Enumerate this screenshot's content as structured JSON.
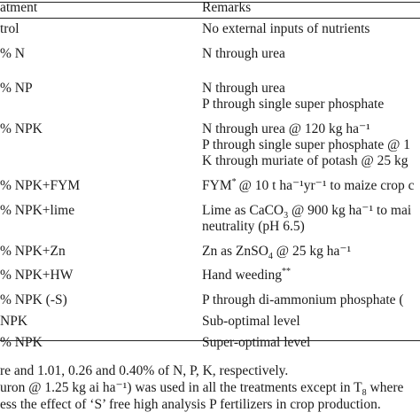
{
  "header": {
    "treatment": "atment",
    "remarks": "Remarks"
  },
  "rows": [
    {
      "treatment": "trol",
      "remarks": [
        "No external inputs of nutrients"
      ]
    },
    {
      "treatment": "% N",
      "remarks": [
        "N through urea"
      ]
    },
    {
      "treatment": "% NP",
      "remarks": [
        "N through urea",
        "P through single super phosphate"
      ]
    },
    {
      "treatment": "% NPK",
      "remarks": [
        "N through urea @ 120 kg ha⁻¹",
        "P through single super phosphate @ 1",
        "K through muriate of potash @ 25 kg"
      ]
    },
    {
      "treatment": "% NPK+FYM",
      "remarks_pre": "FYM",
      "remarks_sup": "*",
      "remarks_post": "@ 10 t ha⁻¹yr⁻¹ to maize crop c"
    },
    {
      "treatment": "% NPK+lime",
      "remarks_pre": "Lime as CaCO",
      "remarks_sub": "3",
      "remarks_post": " @ 900 kg ha⁻¹ to mai",
      "remarks_line2": "neutrality (pH 6.5)"
    },
    {
      "treatment": "% NPK+Zn",
      "remarks_pre": "Zn as ZnSO",
      "remarks_sub": "4",
      "remarks_post": " @ 25 kg ha⁻¹"
    },
    {
      "treatment": "% NPK+HW",
      "remarks_pre": "Hand weeding",
      "remarks_sup": "**"
    },
    {
      "treatment": "% NPK (-S)",
      "remarks": [
        "P through di-ammonium phosphate ("
      ]
    },
    {
      "treatment": "NPK",
      "remarks": [
        "Sub-optimal level"
      ]
    },
    {
      "treatment": "% NPK",
      "remarks": [
        "Super-optimal level"
      ]
    }
  ],
  "footnotes": {
    "line1": "re and 1.01, 0.26 and 0.40% of N, P, K, respectively.",
    "line2_pre": "uron @ 1.25 kg ai ha⁻¹) was used in all the treatments except in T",
    "line2_sub": "8",
    "line2_post": " where",
    "line3": "ess the effect of ‘S’ free high analysis P fertilizers in crop production."
  }
}
